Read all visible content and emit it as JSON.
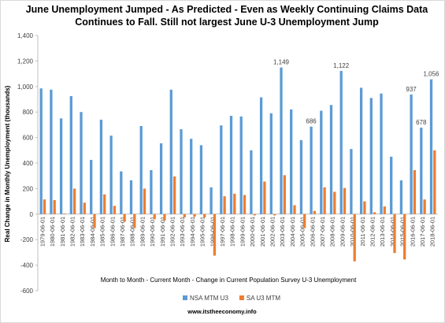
{
  "chart_data": {
    "type": "bar",
    "title": [
      "June Unemployment Jumped - As Predicted - Even as Weekly Continuing Claims Data",
      "Continues to Fall. Still not largest June U-3 Unemployment Jump"
    ],
    "y_label": "Real Change in Monthly Unemployment (thousands)",
    "x_label": "Month to Month - Current Month - Change in Current Population Survey U-3 Unemployment",
    "source": "www.itstheeconomy.info",
    "categories": [
      "1979-06-01",
      "1980-06-01",
      "1981-06-01",
      "1982-06-01",
      "1983-06-01",
      "1984-06-01",
      "1985-06-01",
      "1986-06-01",
      "1987-06-01",
      "1988-06-01",
      "1989-06-01",
      "1990-06-01",
      "1991-06-01",
      "1992-06-01",
      "1993-06-01",
      "1994-06-01",
      "1995-06-01",
      "1996-06-01",
      "1997-06-01",
      "1998-06-01",
      "1999-06-01",
      "2000-06-01",
      "2001-06-01",
      "2002-06-01",
      "2003-06-01",
      "2004-06-01",
      "2005-06-01",
      "2006-06-01",
      "2007-06-01",
      "2008-06-01",
      "2009-06-01",
      "2010-06-01",
      "2011-06-01",
      "2012-06-01",
      "2013-06-01",
      "2014-06-01",
      "2015-06-01",
      "2016-06-01",
      "2017-06-01",
      "2018-06-01"
    ],
    "series": [
      {
        "name": "NSA MTM U3",
        "color": "#5b9bd5",
        "values": [
          985,
          975,
          750,
          925,
          800,
          425,
          740,
          615,
          335,
          265,
          690,
          345,
          555,
          975,
          665,
          590,
          540,
          210,
          695,
          770,
          765,
          500,
          915,
          790,
          1149,
          820,
          580,
          686,
          810,
          855,
          1122,
          510,
          990,
          910,
          945,
          450,
          265,
          937,
          678,
          1056
        ],
        "value_labels": [
          null,
          null,
          null,
          null,
          null,
          null,
          null,
          null,
          null,
          null,
          null,
          null,
          null,
          null,
          null,
          null,
          null,
          null,
          null,
          null,
          null,
          null,
          null,
          null,
          "1,149",
          null,
          null,
          "686",
          null,
          null,
          "1,122",
          null,
          null,
          null,
          null,
          null,
          null,
          "937",
          "678",
          "1,056"
        ]
      },
      {
        "name": "SA U3 MTM",
        "color": "#ed7d31",
        "values": [
          115,
          110,
          5,
          200,
          90,
          -110,
          155,
          65,
          -60,
          -110,
          200,
          -40,
          -50,
          295,
          -25,
          -20,
          -25,
          -325,
          140,
          160,
          150,
          -10,
          255,
          -10,
          305,
          70,
          -110,
          25,
          210,
          175,
          205,
          -370,
          100,
          15,
          60,
          -305,
          -355,
          345,
          115,
          500
        ]
      }
    ],
    "ylim": [
      -600,
      1400
    ],
    "yticks": [
      {
        "value": 1400,
        "label": "1,400"
      },
      {
        "value": 1200,
        "label": "1,200"
      },
      {
        "value": 1000,
        "label": "1,000"
      },
      800,
      600,
      400,
      200,
      0,
      -200,
      -400,
      -600
    ],
    "legend": "bottom"
  }
}
